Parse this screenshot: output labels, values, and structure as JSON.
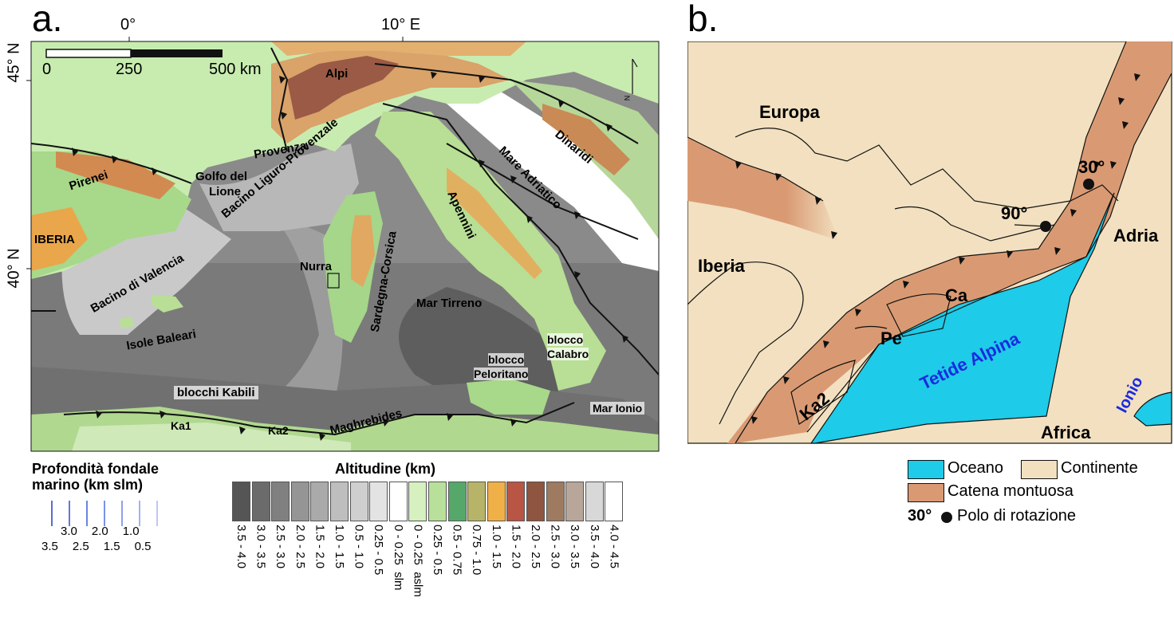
{
  "panel_a": {
    "letter": "a.",
    "lon_ticks": [
      "0°",
      "10° E"
    ],
    "lat_ticks": [
      "45° N",
      "40° N"
    ],
    "scalebar": {
      "labels": [
        "0",
        "250",
        "500 km"
      ]
    },
    "north_label": "N",
    "labels": {
      "alpi": "Alpi",
      "provenza": "Provenza",
      "pirenei": "Pirenei",
      "golfo1": "Golfo del",
      "golfo2": "Lione",
      "iberia": "IBERIA",
      "bacino_lp": "Bacino Liguro-Provenzale",
      "bacino_val": "Bacino di Valencia",
      "isole": "Isole Baleari",
      "nurra": "Nurra",
      "sardegna": "Sardegna-Corsica",
      "mar_tirreno": "Mar Tirreno",
      "mare_adriatico": "Mare Adriatico",
      "appennini": "Apennini",
      "dinaridi": "Dinaridi",
      "calabro1": "blocco",
      "calabro2": "Calabro",
      "peloritano1": "blocco",
      "peloritano2": "Peloritano",
      "mar_ionio": "Mar Ionio",
      "blocchi_kabili": "blocchi Kabili",
      "ka1": "Ka1",
      "ka2": "Ka2",
      "maghrebides": "Maghrebides"
    }
  },
  "panel_b": {
    "letter": "b.",
    "labels": {
      "europa": "Europa",
      "iberia": "Iberia",
      "adria": "Adria",
      "africa": "Africa",
      "tetide": "Tetide Alpina",
      "ionio": "Ionio",
      "ca": "Ca",
      "pe": "Pe",
      "ka2": "Ka2",
      "pole30": "30°",
      "pole90": "90°"
    },
    "colors": {
      "ocean": "#1ecbe8",
      "continent": "#f2e0c0",
      "mountain": "#d99a73"
    }
  },
  "legend_depth": {
    "title1": "Profondità fondale",
    "title2": "marino (km slm)",
    "row1": [
      "3.0",
      "2.0",
      "1.0"
    ],
    "row2": [
      "3.5",
      "2.5",
      "1.5",
      "0.5"
    ]
  },
  "legend_alt": {
    "title": "Altitudine (km)",
    "classes": [
      {
        "label": "3.5 - 4.0",
        "color": "#555555"
      },
      {
        "label": "3.0 - 3.5",
        "color": "#6b6b6b"
      },
      {
        "label": "2.5 - 3.0",
        "color": "#808080"
      },
      {
        "label": "2.0 - 2.5",
        "color": "#959595"
      },
      {
        "label": "1.5 - 2.0",
        "color": "#aaaaaa"
      },
      {
        "label": "1.0 - 1.5",
        "color": "#bebebe"
      },
      {
        "label": "0.5 - 1.0",
        "color": "#cfcfcf"
      },
      {
        "label": "0.25 - 0.5",
        "color": "#e3e3e3"
      },
      {
        "label": "0 - 0.25  slm",
        "color": "#ffffff"
      },
      {
        "label": "0 - 0.25  aslm",
        "color": "#d6f0c0"
      },
      {
        "label": "0.25 - 0.5",
        "color": "#b8e09a"
      },
      {
        "label": "0.5 - 0.75",
        "color": "#56a86a"
      },
      {
        "label": "0.75 - 1.0",
        "color": "#b7b46a"
      },
      {
        "label": "1.0 - 1.5",
        "color": "#f0b048"
      },
      {
        "label": "1.5 - 2.0",
        "color": "#b85545"
      },
      {
        "label": "2.0 - 2.5",
        "color": "#8e5540"
      },
      {
        "label": "2.5 - 3.0",
        "color": "#9e7a60"
      },
      {
        "label": "3.0 - 3.5",
        "color": "#b8a69a"
      },
      {
        "label": "3.5 - 4.0",
        "color": "#d8d8d8"
      },
      {
        "label": "4.0 - 4.5",
        "color": "#ffffff"
      }
    ]
  },
  "legend_b": {
    "oceano": "Oceano",
    "continente": "Continente",
    "catena": "Catena montuosa",
    "polo_num": "30°",
    "polo_label": "Polo di rotazione"
  }
}
